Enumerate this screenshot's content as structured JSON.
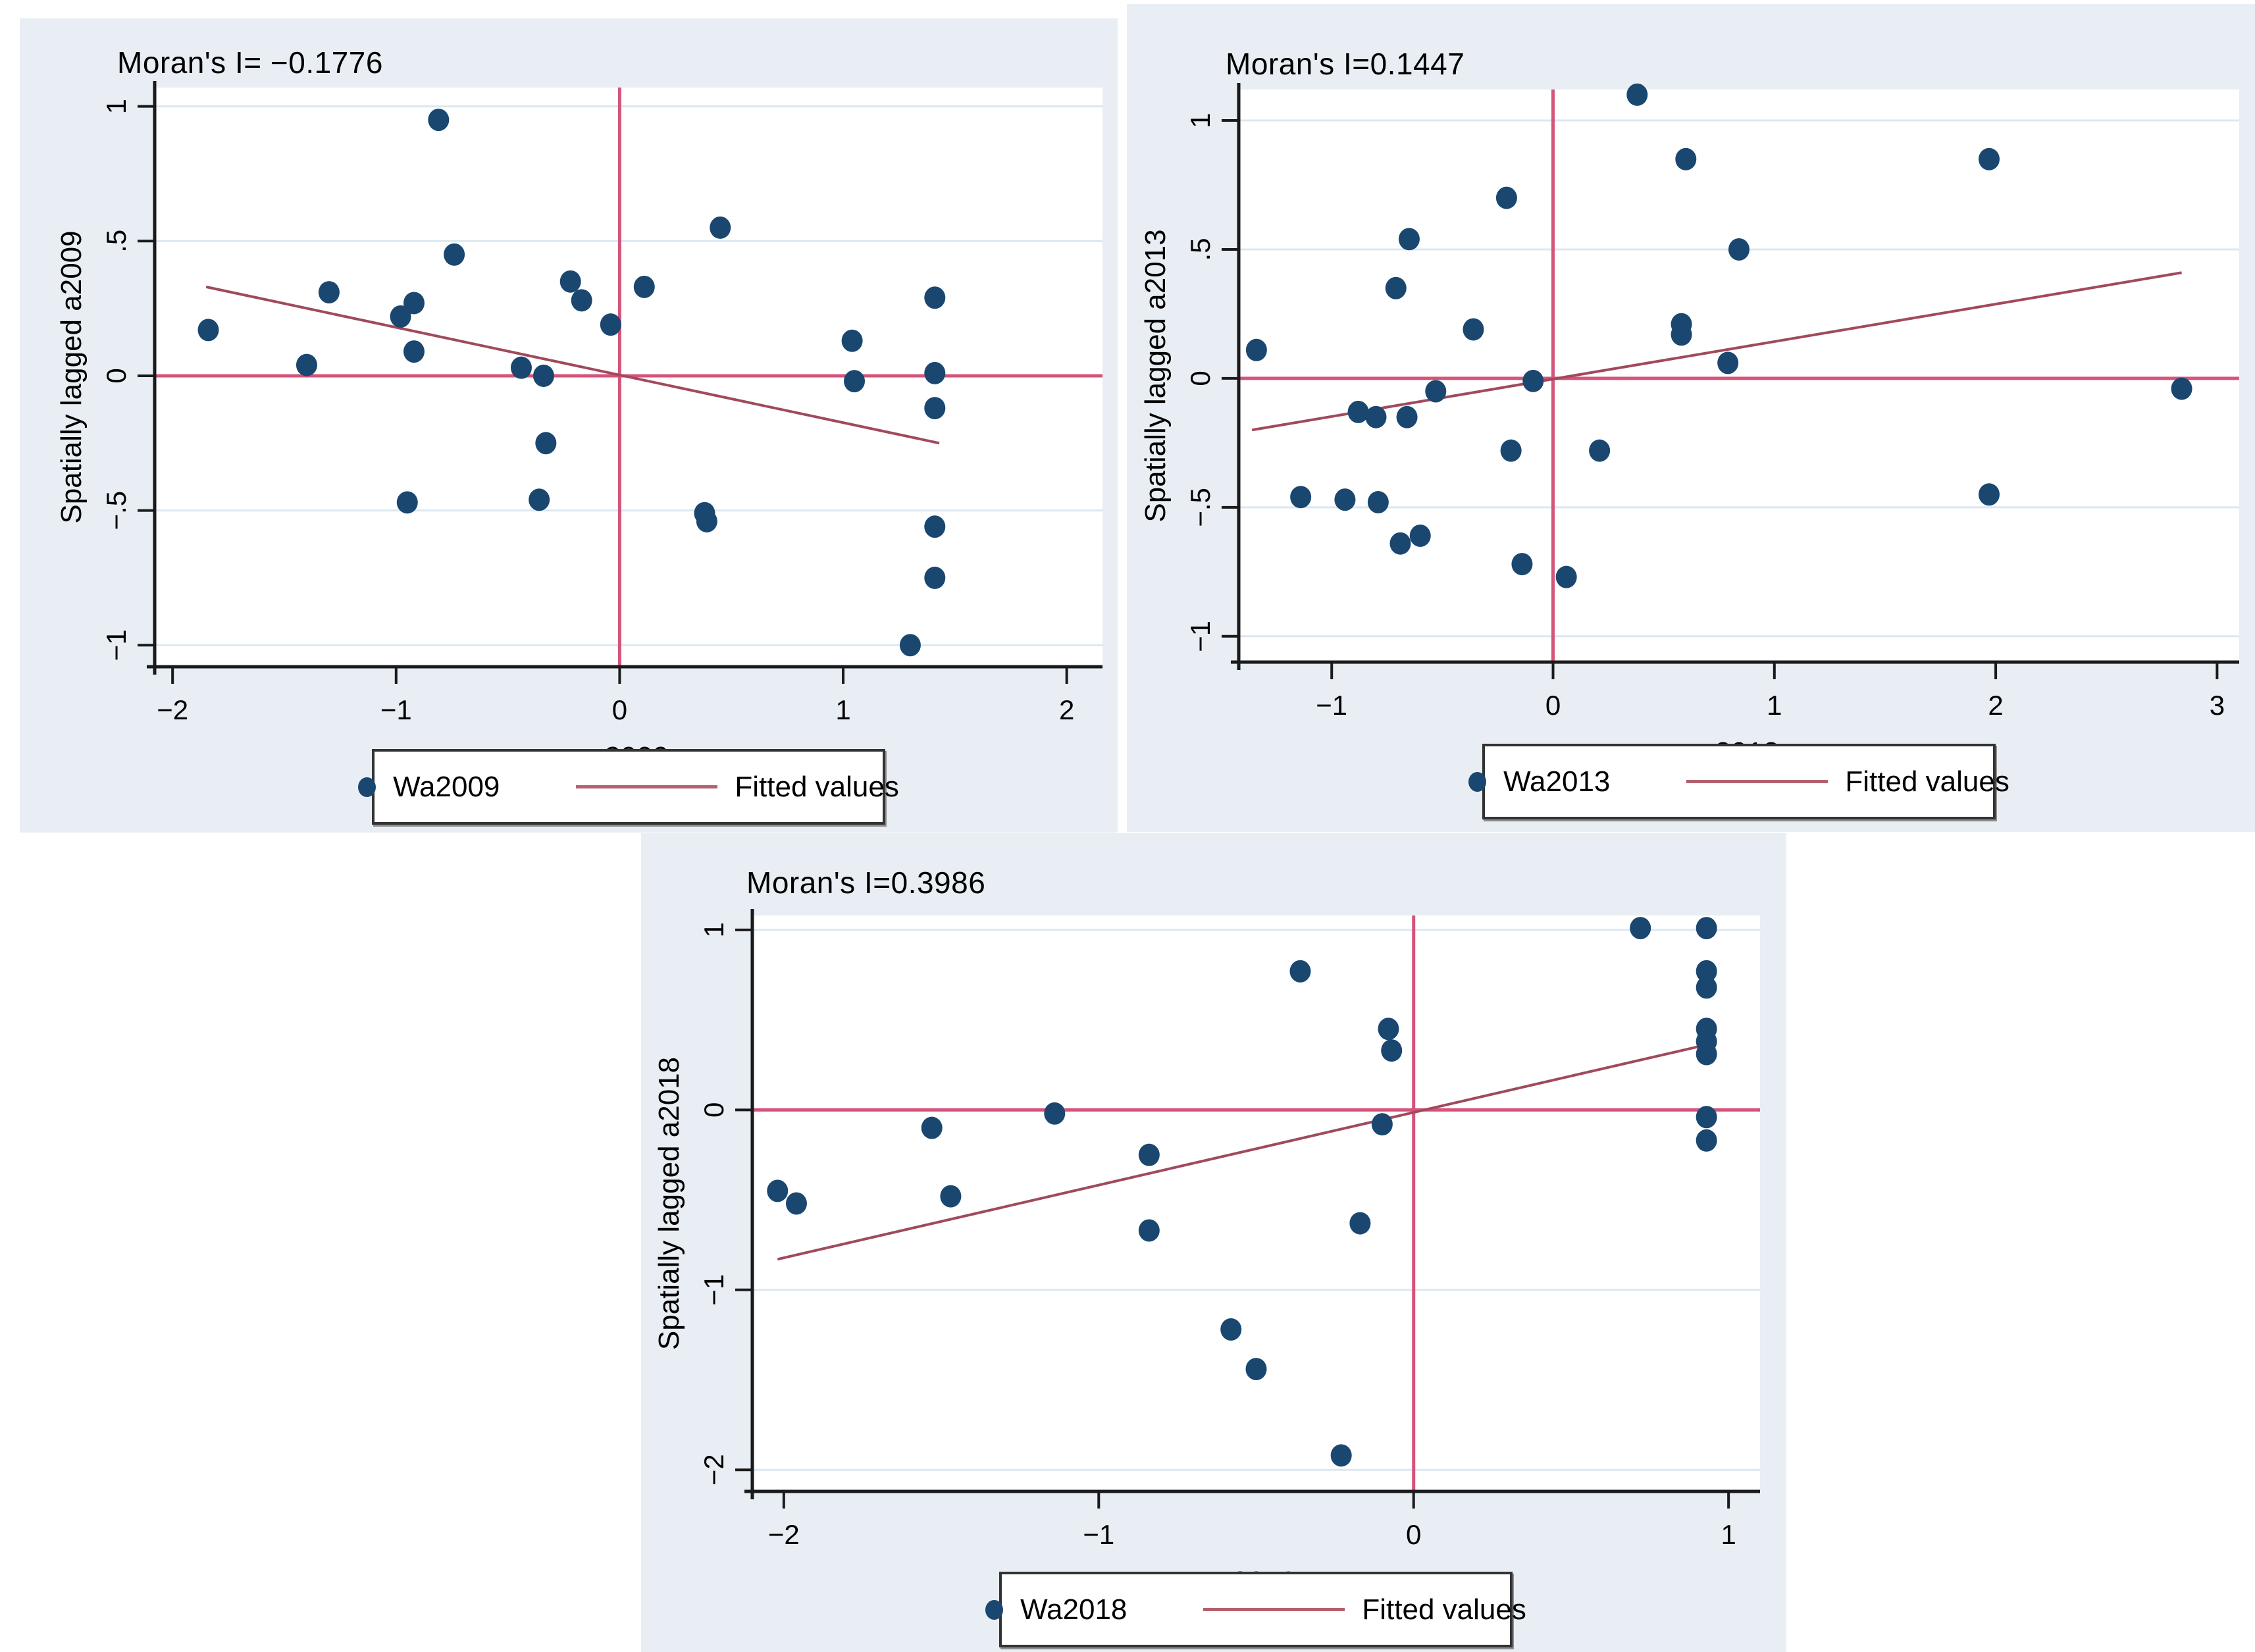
{
  "colors": {
    "page_bg": "#ffffff",
    "panel_bg": "#e8eef3",
    "plot_bg": "#ffffff",
    "grid": "#dbe8f1",
    "axis": "#1a1a1a",
    "dot": "#1a476f",
    "ref_line": "#d4547a",
    "fit_line": "#a04a5c",
    "legend_line": "#b4616f",
    "legend_border": "#333333",
    "legend_bg": "#ffffff",
    "text": "#000000"
  },
  "chart_data": [
    {
      "type": "scatter",
      "title": "Moran's I= −0.1776",
      "moran_i": -0.1776,
      "xlabel": "a2009",
      "ylabel": "Spatially lagged a2009",
      "xlim": [
        -2.08,
        2.16
      ],
      "ylim": [
        -1.08,
        1.07
      ],
      "xticks": [
        -2,
        -1,
        0,
        1,
        2
      ],
      "xtick_labels": [
        "−2",
        "−1",
        "0",
        "1",
        "2"
      ],
      "yticks": [
        -1,
        -0.5,
        0,
        0.5,
        1
      ],
      "ytick_labels": [
        "−1",
        "−.5",
        "0",
        ".5",
        "1"
      ],
      "grid": "horizontal",
      "ref_line_x": 0,
      "ref_line_y": 0,
      "fitted_line": {
        "x1": -1.85,
        "y1": 0.33,
        "x2": 1.43,
        "y2": -0.25
      },
      "legend": {
        "position": "bottom",
        "series_label": "Wa2009",
        "fitted_label": "Fitted values"
      },
      "series": [
        {
          "name": "Wa2009",
          "points": [
            [
              -1.84,
              0.17
            ],
            [
              -1.4,
              0.04
            ],
            [
              -1.3,
              0.31
            ],
            [
              -0.98,
              0.22
            ],
            [
              -0.95,
              -0.47
            ],
            [
              -0.92,
              0.27
            ],
            [
              -0.92,
              0.09
            ],
            [
              -0.81,
              0.95
            ],
            [
              -0.74,
              0.45
            ],
            [
              -0.44,
              0.03
            ],
            [
              -0.36,
              -0.46
            ],
            [
              -0.34,
              0.0
            ],
            [
              -0.33,
              -0.25
            ],
            [
              -0.22,
              0.35
            ],
            [
              -0.17,
              0.28
            ],
            [
              -0.04,
              0.19
            ],
            [
              0.11,
              0.33
            ],
            [
              0.38,
              -0.51
            ],
            [
              0.39,
              -0.54
            ],
            [
              0.45,
              0.55
            ],
            [
              1.04,
              0.13
            ],
            [
              1.05,
              -0.02
            ],
            [
              1.3,
              -1.0
            ],
            [
              1.41,
              0.29
            ],
            [
              1.41,
              0.01
            ],
            [
              1.41,
              -0.12
            ],
            [
              1.41,
              -0.56
            ],
            [
              1.41,
              -0.75
            ]
          ]
        }
      ]
    },
    {
      "type": "scatter",
      "title": "Moran's I=0.1447",
      "moran_i": 0.1447,
      "xlabel": "a2013",
      "ylabel": "Spatially lagged a2013",
      "xlim": [
        -1.42,
        3.1
      ],
      "ylim": [
        -1.1,
        1.12
      ],
      "xticks": [
        -1,
        0,
        1,
        2,
        3
      ],
      "xtick_labels": [
        "−1",
        "0",
        "1",
        "2",
        "3"
      ],
      "yticks": [
        -1,
        -0.5,
        0,
        0.5,
        1
      ],
      "ytick_labels": [
        "−1",
        "−.5",
        "0",
        ".5",
        "1"
      ],
      "grid": "horizontal",
      "ref_line_x": 0,
      "ref_line_y": 0,
      "fitted_line": {
        "x1": -1.36,
        "y1": -0.2,
        "x2": 2.84,
        "y2": 0.41
      },
      "legend": {
        "position": "bottom",
        "series_label": "Wa2013",
        "fitted_label": "Fitted values"
      },
      "series": [
        {
          "name": "Wa2013",
          "points": [
            [
              -1.34,
              0.11
            ],
            [
              -1.14,
              -0.46
            ],
            [
              -0.94,
              -0.47
            ],
            [
              -0.88,
              -0.13
            ],
            [
              -0.8,
              -0.15
            ],
            [
              -0.79,
              -0.48
            ],
            [
              -0.71,
              0.35
            ],
            [
              -0.69,
              -0.64
            ],
            [
              -0.66,
              -0.15
            ],
            [
              -0.65,
              0.54
            ],
            [
              -0.6,
              -0.61
            ],
            [
              -0.53,
              -0.05
            ],
            [
              -0.36,
              0.19
            ],
            [
              -0.21,
              0.7
            ],
            [
              -0.19,
              -0.28
            ],
            [
              -0.14,
              -0.72
            ],
            [
              -0.09,
              -0.01
            ],
            [
              0.06,
              -0.77
            ],
            [
              0.21,
              -0.28
            ],
            [
              0.38,
              1.1
            ],
            [
              0.58,
              0.21
            ],
            [
              0.58,
              0.17
            ],
            [
              0.6,
              0.85
            ],
            [
              0.79,
              0.06
            ],
            [
              0.84,
              0.5
            ],
            [
              1.97,
              0.85
            ],
            [
              1.97,
              -0.45
            ],
            [
              2.84,
              -0.04
            ]
          ]
        }
      ]
    },
    {
      "type": "scatter",
      "title": "Moran's I=0.3986",
      "moran_i": 0.3986,
      "xlabel": "a2018",
      "ylabel": "Spatially lagged a2018",
      "xlim": [
        -2.1,
        1.1
      ],
      "ylim": [
        -2.12,
        1.08
      ],
      "xticks": [
        -2,
        -1,
        0,
        1
      ],
      "xtick_labels": [
        "−2",
        "−1",
        "0",
        "1"
      ],
      "yticks": [
        -2,
        -1,
        0,
        1
      ],
      "ytick_labels": [
        "−2",
        "−1",
        "0",
        "1"
      ],
      "grid": "horizontal",
      "ref_line_x": 0,
      "ref_line_y": 0,
      "fitted_line": {
        "x1": -2.02,
        "y1": -0.83,
        "x2": 0.95,
        "y2": 0.37
      },
      "legend": {
        "position": "bottom",
        "series_label": "Wa2018",
        "fitted_label": "Fitted values"
      },
      "series": [
        {
          "name": "Wa2018",
          "points": [
            [
              -2.02,
              -0.45
            ],
            [
              -1.96,
              -0.52
            ],
            [
              -1.53,
              -0.1
            ],
            [
              -1.47,
              -0.48
            ],
            [
              -1.14,
              -0.02
            ],
            [
              -0.84,
              -0.25
            ],
            [
              -0.84,
              -0.67
            ],
            [
              -0.58,
              -1.22
            ],
            [
              -0.5,
              -1.44
            ],
            [
              -0.36,
              0.77
            ],
            [
              -0.23,
              -1.92
            ],
            [
              -0.17,
              -0.63
            ],
            [
              -0.1,
              -0.08
            ],
            [
              -0.08,
              0.45
            ],
            [
              -0.07,
              0.33
            ],
            [
              0.72,
              1.01
            ],
            [
              0.93,
              1.01
            ],
            [
              0.93,
              0.77
            ],
            [
              0.93,
              0.68
            ],
            [
              0.93,
              0.45
            ],
            [
              0.93,
              0.38
            ],
            [
              0.93,
              0.31
            ],
            [
              0.93,
              -0.04
            ],
            [
              0.93,
              -0.17
            ]
          ]
        }
      ]
    }
  ]
}
